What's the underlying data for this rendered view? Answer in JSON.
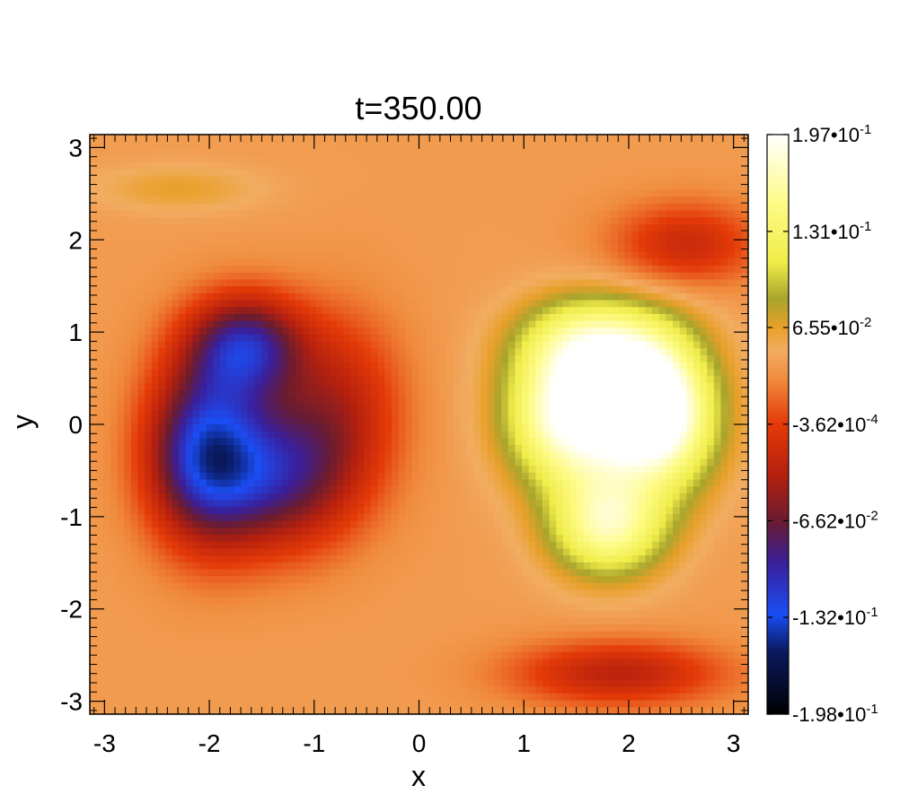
{
  "chart_data": {
    "type": "heatmap",
    "title": "t=350.00",
    "xlabel": "x",
    "ylabel": "y",
    "xlim": [
      -3.14,
      3.14
    ],
    "ylim": [
      -3.14,
      3.14
    ],
    "x_ticks": [
      -3,
      -2,
      -1,
      0,
      1,
      2,
      3
    ],
    "y_ticks": [
      -3,
      -2,
      -1,
      0,
      1,
      2,
      3
    ],
    "x_tick_labels": [
      "-3",
      "-2",
      "-1",
      "0",
      "1",
      "2",
      "3"
    ],
    "y_tick_labels": [
      "-3",
      "-2",
      "-1",
      "0",
      "1",
      "2",
      "3"
    ],
    "colorbar": {
      "min": -0.198,
      "max": 0.197,
      "ticks": [
        {
          "value": 0.197,
          "mant": "1.97",
          "exp": "-1"
        },
        {
          "value": 0.131,
          "mant": "1.31",
          "exp": "-1"
        },
        {
          "value": 0.0655,
          "mant": "6.55",
          "exp": "-2"
        },
        {
          "value": -0.000362,
          "mant": "-3.62",
          "exp": "-4"
        },
        {
          "value": -0.0662,
          "mant": "-6.62",
          "exp": "-2"
        },
        {
          "value": -0.132,
          "mant": "-1.32",
          "exp": "-1"
        },
        {
          "value": -0.198,
          "mant": "-1.98",
          "exp": "-1"
        }
      ],
      "colors": [
        {
          "v": -0.198,
          "c": "#000000"
        },
        {
          "v": -0.155,
          "c": "#0a1a60"
        },
        {
          "v": -0.13,
          "c": "#1a4ef5"
        },
        {
          "v": -0.095,
          "c": "#3a1f9a"
        },
        {
          "v": -0.066,
          "c": "#6a1c30"
        },
        {
          "v": -0.035,
          "c": "#b5200e"
        },
        {
          "v": 0.0,
          "c": "#e43a08"
        },
        {
          "v": 0.03,
          "c": "#f08a3c"
        },
        {
          "v": 0.05,
          "c": "#f2ad62"
        },
        {
          "v": 0.065,
          "c": "#e9a02a"
        },
        {
          "v": 0.085,
          "c": "#a8a42c"
        },
        {
          "v": 0.11,
          "c": "#f0ec48"
        },
        {
          "v": 0.15,
          "c": "#fefb86"
        },
        {
          "v": 0.197,
          "c": "#ffffff"
        }
      ]
    },
    "features": [
      {
        "cx": -2.05,
        "cy": -0.3,
        "sx": 0.55,
        "sy": 0.95,
        "amp": -0.15
      },
      {
        "cx": -1.65,
        "cy": 0.85,
        "sx": 0.55,
        "sy": 0.55,
        "amp": -0.13
      },
      {
        "cx": -1.35,
        "cy": -0.55,
        "sx": 0.7,
        "sy": 0.8,
        "amp": -0.11
      },
      {
        "cx": -0.75,
        "cy": 0.2,
        "sx": 0.6,
        "sy": 1.0,
        "amp": -0.06
      },
      {
        "cx": 1.45,
        "cy": 0.1,
        "sx": 0.6,
        "sy": 0.75,
        "amp": 0.16
      },
      {
        "cx": 2.3,
        "cy": 0.1,
        "sx": 0.55,
        "sy": 0.8,
        "amp": 0.16
      },
      {
        "cx": 1.8,
        "cy": -1.1,
        "sx": 0.55,
        "sy": 0.55,
        "amp": 0.12
      },
      {
        "cx": 1.7,
        "cy": 0.9,
        "sx": 0.7,
        "sy": 0.5,
        "amp": 0.1
      },
      {
        "cx": 2.1,
        "cy": 0.25,
        "sx": 0.4,
        "sy": 0.5,
        "amp": 0.06
      },
      {
        "cx": 2.55,
        "cy": 1.95,
        "sx": 0.7,
        "sy": 0.45,
        "amp": -0.06
      },
      {
        "cx": 1.9,
        "cy": -2.7,
        "sx": 1.0,
        "sy": 0.35,
        "amp": -0.07
      },
      {
        "cx": -2.3,
        "cy": 2.55,
        "sx": 0.8,
        "sy": 0.25,
        "amp": 0.025
      }
    ]
  }
}
